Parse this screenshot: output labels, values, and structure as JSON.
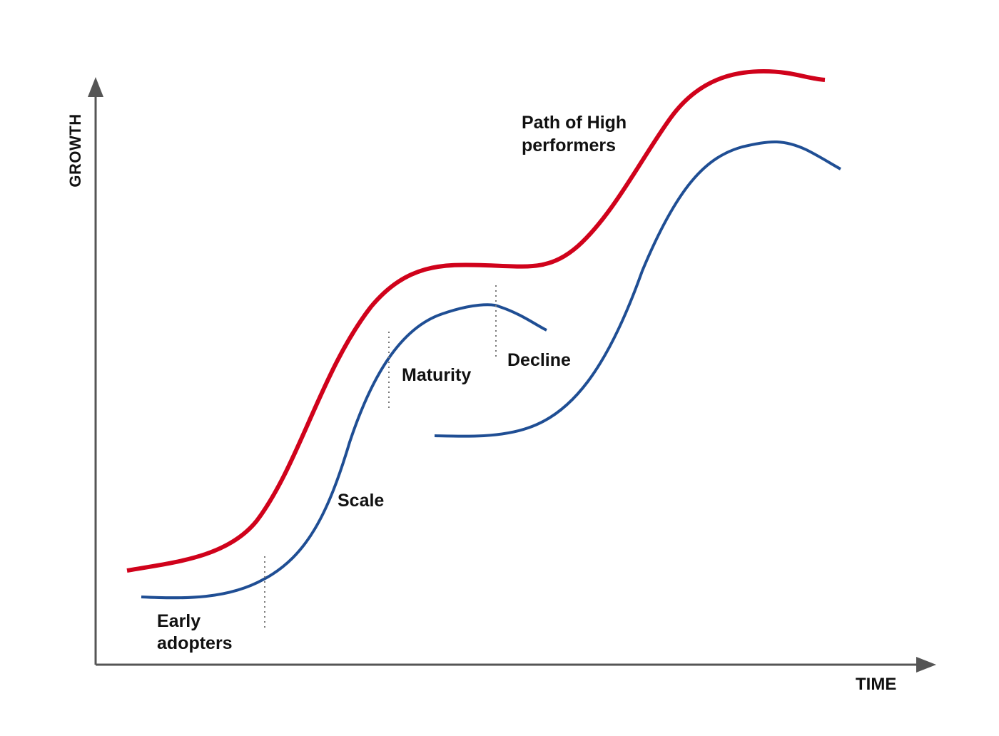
{
  "axes": {
    "y_label": "GROWTH",
    "x_label": "TIME"
  },
  "annotations": {
    "high_performers": [
      "Path of High",
      "performers"
    ],
    "early_adopters": [
      "Early",
      "adopters"
    ],
    "scale": "Scale",
    "maturity": "Maturity",
    "decline": "Decline"
  },
  "colors": {
    "high_performer_curve": "#d0021b",
    "s_curve": "#1f4e94",
    "axis": "#555555",
    "divider": "#777777",
    "text": "#111111"
  }
}
